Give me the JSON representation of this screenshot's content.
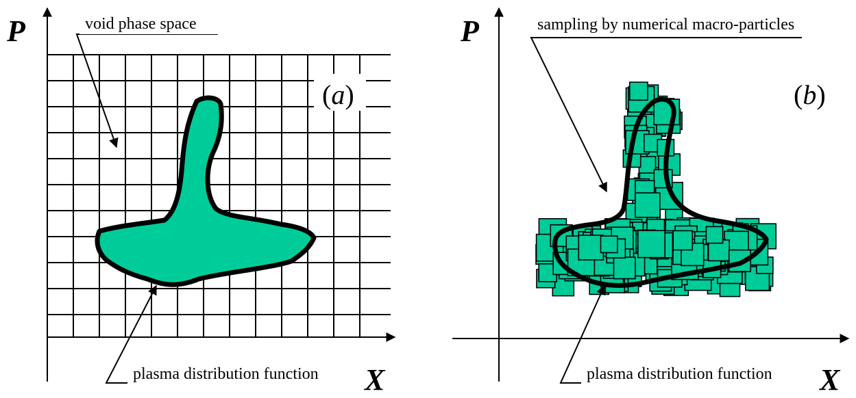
{
  "panel_a": {
    "axis_y_label": "P",
    "axis_x_label": "X",
    "label_open": "(",
    "label_letter": "a",
    "label_close": ")",
    "callout_top": "void phase space",
    "callout_bottom": "plasma distribution function"
  },
  "panel_b": {
    "axis_y_label": "P",
    "axis_x_label": "X",
    "label_open": "(",
    "label_letter": "b",
    "label_close": ")",
    "callout_top": "sampling by numerical macro-particles",
    "callout_bottom": "plasma distribution function"
  },
  "colors": {
    "fill": "#00cc99",
    "line": "#000000",
    "background": "#ffffff"
  }
}
